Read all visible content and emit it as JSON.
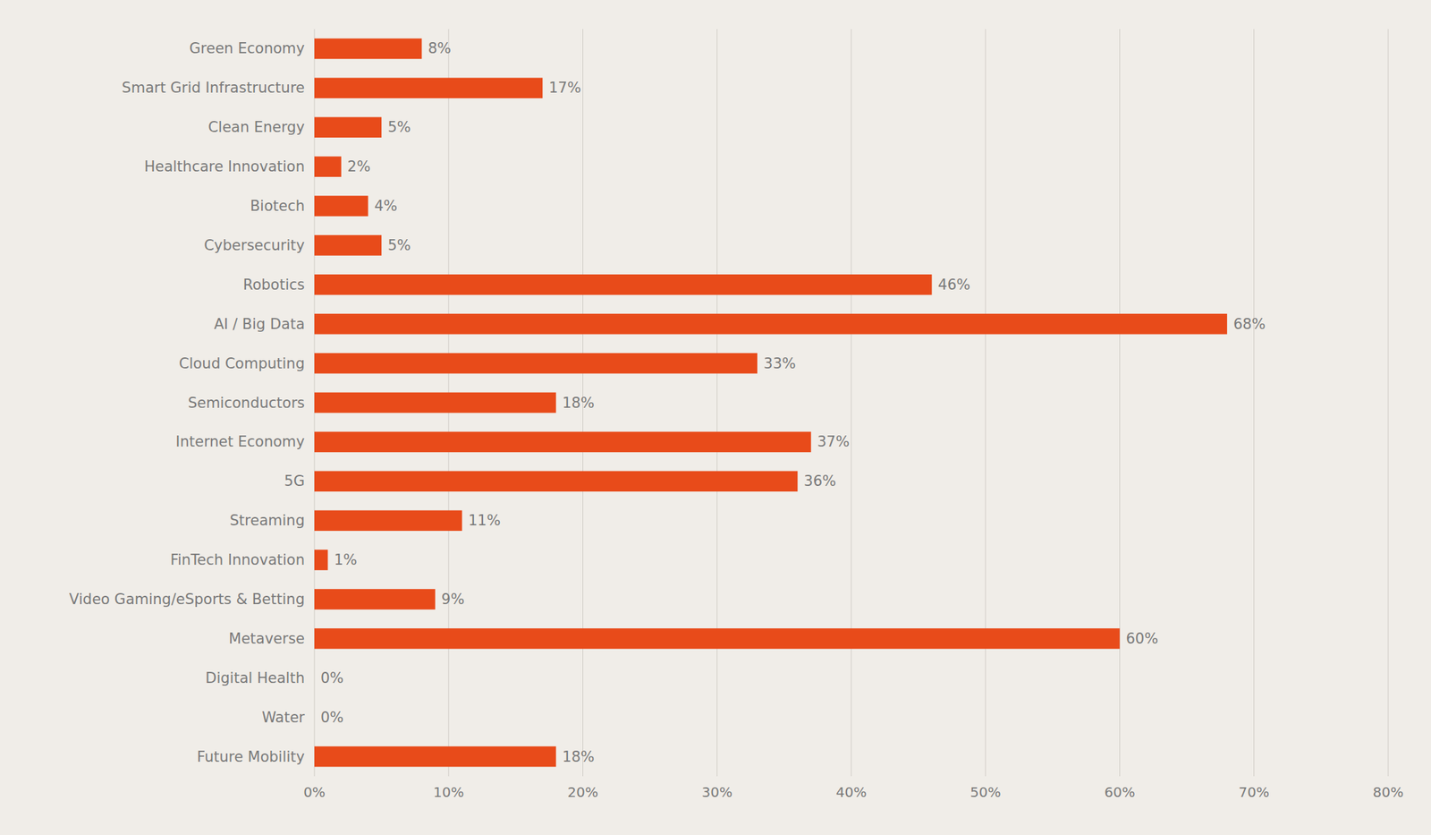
{
  "chart_data": {
    "type": "bar",
    "orientation": "horizontal",
    "categories": [
      "Future Mobility",
      "Water",
      "Digital Health",
      "Metaverse",
      "Video Gaming/eSports & Betting",
      "FinTech Innovation",
      "Streaming",
      "5G",
      "Internet Economy",
      "Semiconductors",
      "Cloud Computing",
      "AI / Big Data",
      "Robotics",
      "Cybersecurity",
      "Biotech",
      "Healthcare Innovation",
      "Clean Energy",
      "Smart Grid Infrastructure",
      "Green Economy"
    ],
    "values": [
      18,
      0,
      0,
      60,
      9,
      1,
      11,
      36,
      37,
      18,
      33,
      68,
      46,
      5,
      4,
      2,
      5,
      17,
      8
    ],
    "value_labels": [
      "18%",
      "0%",
      "0%",
      "60%",
      "9%",
      "1%",
      "11%",
      "36%",
      "37%",
      "18%",
      "33%",
      "68%",
      "46%",
      "5%",
      "4%",
      "2%",
      "5%",
      "17%",
      "8%"
    ],
    "data_labels": true,
    "color": "#E84B1A",
    "xlim": [
      0,
      80
    ],
    "xticks": [
      {
        "value": 0,
        "label": "0%"
      },
      {
        "value": 10,
        "label": "10%"
      },
      {
        "value": 20,
        "label": "20%"
      },
      {
        "value": 30,
        "label": "30%"
      },
      {
        "value": 40,
        "label": "40%"
      },
      {
        "value": 50,
        "label": "50%"
      },
      {
        "value": 60,
        "label": "60%"
      },
      {
        "value": 70,
        "label": "70%"
      },
      {
        "value": 80,
        "label": "80%"
      }
    ],
    "grid": true
  }
}
